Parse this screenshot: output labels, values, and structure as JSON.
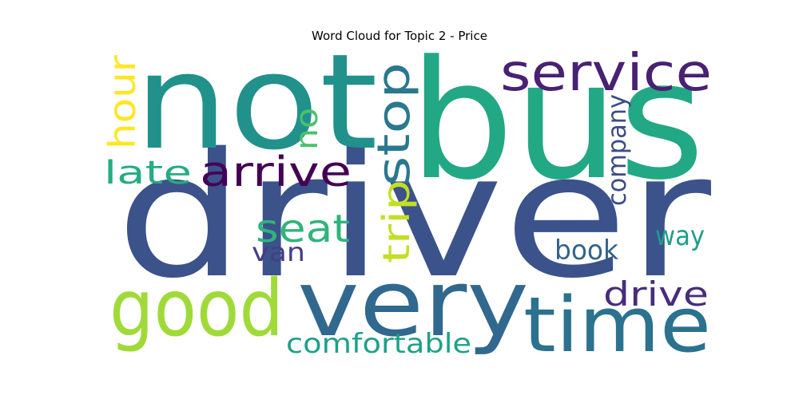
{
  "title": "Word Cloud for Topic 2 - Price",
  "words": [
    {
      "text": "driver",
      "color": "#3b528b"
    },
    {
      "text": "bus",
      "color": "#22a884"
    },
    {
      "text": "not",
      "color": "#21918c"
    },
    {
      "text": "very",
      "color": "#31688e"
    },
    {
      "text": "time",
      "color": "#2c728e"
    },
    {
      "text": "good",
      "color": "#a0da39"
    },
    {
      "text": "service",
      "color": "#482173"
    },
    {
      "text": "stop",
      "color": "#2a788e"
    },
    {
      "text": "arrive",
      "color": "#440154"
    },
    {
      "text": "hour",
      "color": "#fde725"
    },
    {
      "text": "trip",
      "color": "#c2df23"
    },
    {
      "text": "seat",
      "color": "#2fb47c"
    },
    {
      "text": "drive",
      "color": "#472d7b"
    },
    {
      "text": "comfortable",
      "color": "#1fa187"
    },
    {
      "text": "late",
      "color": "#25ac82"
    },
    {
      "text": "company",
      "color": "#3e4a89"
    },
    {
      "text": "no",
      "color": "#4ac16d"
    },
    {
      "text": "book",
      "color": "#33638d"
    },
    {
      "text": "way",
      "color": "#1f9e89"
    },
    {
      "text": "van",
      "color": "#433e85"
    }
  ]
}
